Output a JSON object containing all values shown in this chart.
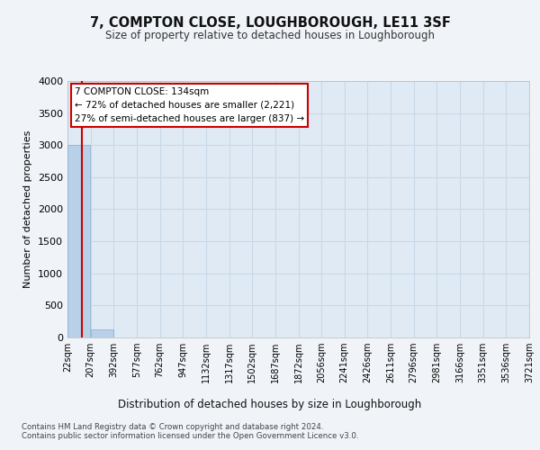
{
  "title": "7, COMPTON CLOSE, LOUGHBOROUGH, LE11 3SF",
  "subtitle": "Size of property relative to detached houses in Loughborough",
  "xlabel": "Distribution of detached houses by size in Loughborough",
  "ylabel": "Number of detached properties",
  "footer_line1": "Contains HM Land Registry data © Crown copyright and database right 2024.",
  "footer_line2": "Contains public sector information licensed under the Open Government Licence v3.0.",
  "annotation_line1": "7 COMPTON CLOSE: 134sqm",
  "annotation_line2": "← 72% of detached houses are smaller (2,221)",
  "annotation_line3": "27% of semi-detached houses are larger (837) →",
  "property_size": 134,
  "bin_edges": [
    22,
    207,
    392,
    577,
    762,
    947,
    1132,
    1317,
    1502,
    1687,
    1872,
    2056,
    2241,
    2426,
    2611,
    2796,
    2981,
    3166,
    3351,
    3536,
    3721
  ],
  "bar_heights": [
    3000,
    120,
    0,
    0,
    0,
    0,
    0,
    0,
    0,
    0,
    0,
    0,
    0,
    0,
    0,
    0,
    0,
    0,
    0,
    0
  ],
  "bar_color": "#b8d0e8",
  "bar_edge_color": "#8ab0cc",
  "grid_color": "#c8d8e8",
  "background_color": "#f0f4f8",
  "plot_bg_color": "#e0eaf4",
  "red_line_color": "#cc0000",
  "annotation_box_color": "#ffffff",
  "annotation_box_edge": "#cc0000",
  "ylim": [
    0,
    4000
  ],
  "yticks": [
    0,
    500,
    1000,
    1500,
    2000,
    2500,
    3000,
    3500,
    4000
  ],
  "tick_labels": [
    "22sqm",
    "207sqm",
    "392sqm",
    "577sqm",
    "762sqm",
    "947sqm",
    "1132sqm",
    "1317sqm",
    "1502sqm",
    "1687sqm",
    "1872sqm",
    "2056sqm",
    "2241sqm",
    "2426sqm",
    "2611sqm",
    "2796sqm",
    "2981sqm",
    "3166sqm",
    "3351sqm",
    "3536sqm",
    "3721sqm"
  ]
}
